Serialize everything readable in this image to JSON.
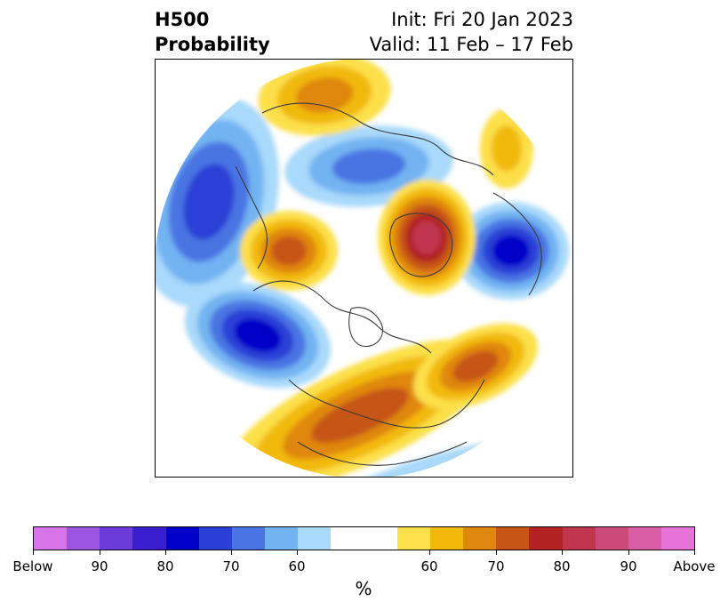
{
  "header": {
    "title_line1": "H500",
    "title_line2": "Probability",
    "init_text": "Init: Fri 20 Jan 2023",
    "valid_text": "Valid: 11 Feb – 17 Feb"
  },
  "map": {
    "projection": "polar-stereographic-north",
    "below_palette": [
      "#ffffff",
      "#a9d9fb",
      "#72b3f2",
      "#4a74e3",
      "#2a3fd6",
      "#0000c8"
    ],
    "above_palette": [
      "#ffffff",
      "#fde04a",
      "#f2b90a",
      "#e0870f",
      "#c65516",
      "#b22222",
      "#c0364f"
    ],
    "coastline_color": "#3a3a3a"
  },
  "colorbar": {
    "colors": [
      "#d774e9",
      "#9c55e0",
      "#6b3cd9",
      "#3a1fd1",
      "#0000c8",
      "#2a3fd6",
      "#4a74e3",
      "#72b3f2",
      "#a9d9fb",
      "#ffffff",
      "#ffffff",
      "#fde04a",
      "#f2b90a",
      "#e0870f",
      "#c65516",
      "#b22222",
      "#c0364f",
      "#cc4a78",
      "#da5ea5",
      "#e674d8"
    ],
    "tick_labels": [
      "Below",
      "90",
      "80",
      "70",
      "60",
      "60",
      "70",
      "80",
      "90",
      "Above"
    ],
    "unit_label": "%"
  }
}
